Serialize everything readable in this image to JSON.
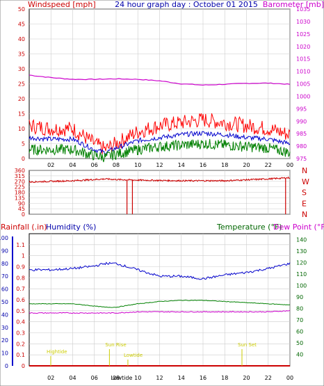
{
  "header": {
    "left_label": "Windspeed [mph]",
    "title": "24 hour graph day : October 01 2015",
    "right_label": "Barometer [mb]"
  },
  "colors": {
    "wind": "#ff0000",
    "wind_avg": "#0000cc",
    "wind_lull": "#008000",
    "barometer": "#cc00cc",
    "direction": "#cc0000",
    "rain": "#cc0000",
    "humidity": "#0000cc",
    "temperature": "#008000",
    "dewpoint": "#cc00cc",
    "tide": "#cccc00",
    "grid": "#cccccc"
  },
  "chart_data": [
    {
      "type": "line",
      "panel": "wind-barometer",
      "x_ticks": [
        "02",
        "04",
        "06",
        "08",
        "10",
        "12",
        "14",
        "16",
        "18",
        "20",
        "22",
        "00"
      ],
      "y_left": {
        "label": "Windspeed [mph]",
        "ylim": [
          0,
          50
        ],
        "ticks": [
          "0",
          "5",
          "10",
          "15",
          "20",
          "25",
          "30",
          "35",
          "40",
          "45",
          "50"
        ]
      },
      "y_right": {
        "label": "Barometer [mb]",
        "ylim": [
          975,
          1035
        ],
        "ticks": [
          "975",
          "980",
          "985",
          "990",
          "995",
          "1000",
          "1005",
          "1010",
          "1015",
          "1020",
          "1025",
          "1030",
          "1035"
        ]
      },
      "hours": [
        0,
        2,
        4,
        6,
        7,
        8,
        10,
        12,
        14,
        16,
        18,
        20,
        22,
        24
      ],
      "series": [
        {
          "key": "gust",
          "axis": "left",
          "values": [
            11,
            10,
            10,
            5,
            3,
            5,
            9,
            11,
            12,
            13,
            12,
            11,
            10,
            8
          ]
        },
        {
          "key": "average",
          "axis": "left",
          "values": [
            7,
            6.5,
            6.5,
            3,
            2,
            3.5,
            6,
            7,
            8,
            8.5,
            8,
            7,
            6.5,
            5
          ]
        },
        {
          "key": "lull",
          "axis": "left",
          "values": [
            3,
            3,
            3,
            1,
            0.5,
            1.5,
            3,
            4,
            4.5,
            5,
            4.5,
            4,
            3.5,
            2
          ]
        },
        {
          "key": "barometer",
          "axis": "right",
          "values": [
            1008.5,
            1007.5,
            1006.8,
            1006.8,
            1006.9,
            1007,
            1006.8,
            1006.2,
            1005,
            1004.5,
            1004.8,
            1005.2,
            1005.3,
            1004.8
          ]
        }
      ]
    },
    {
      "type": "line",
      "panel": "wind-direction",
      "y_left": {
        "ylim": [
          0,
          360
        ],
        "ticks": [
          "0",
          "45",
          "90",
          "135",
          "180",
          "225",
          "270",
          "315",
          "360"
        ]
      },
      "y_right": {
        "ticks": [
          "N",
          "W",
          "S",
          "E",
          "N"
        ]
      },
      "hours": [
        0,
        4,
        7,
        8,
        10,
        14,
        18,
        22,
        24
      ],
      "values": [
        265,
        275,
        290,
        285,
        280,
        275,
        275,
        290,
        300
      ],
      "dips": [
        {
          "hour": 9.0,
          "value": 0
        },
        {
          "hour": 9.5,
          "value": 0
        },
        {
          "hour": 23.6,
          "value": 0
        }
      ]
    },
    {
      "type": "line",
      "panel": "rain-humidity-temperature",
      "left_labels": {
        "rain": "Rainfall (.in)",
        "humidity": "Humidity (%)"
      },
      "right_labels": {
        "temperature": "Temperature (°F)",
        "dewpoint": "Dew Point (°F)"
      },
      "y_humidity": {
        "ylim": [
          0,
          100
        ],
        "ticks": [
          "0",
          "10",
          "20",
          "30",
          "40",
          "50",
          "60",
          "70",
          "80",
          "90",
          "100"
        ]
      },
      "y_rain": {
        "ylim": [
          0,
          1.2
        ],
        "ticks": [
          "0",
          "0.1",
          "0.2",
          "0.3",
          "0.4",
          "0.5",
          "0.6",
          "0.7",
          "0.8",
          "0.9",
          "1",
          "1.1"
        ]
      },
      "y_temp": {
        "ylim": [
          30,
          145
        ],
        "ticks": [
          "40",
          "50",
          "60",
          "70",
          "80",
          "90",
          "100",
          "110",
          "120",
          "130",
          "140"
        ]
      },
      "hours": [
        0,
        2,
        4,
        6,
        7,
        8,
        10,
        12,
        14,
        16,
        18,
        20,
        22,
        24
      ],
      "series": [
        {
          "key": "humidity",
          "axis": "humidity",
          "values": [
            75,
            75,
            76,
            78,
            80,
            80,
            75,
            70,
            70,
            68,
            71,
            73,
            76,
            80
          ]
        },
        {
          "key": "temperature",
          "axis": "temp",
          "values": [
            84,
            84,
            84,
            82,
            81,
            81,
            84,
            86,
            87,
            87,
            86,
            85,
            84,
            83
          ]
        },
        {
          "key": "dewpoint",
          "axis": "temp",
          "values": [
            76,
            76,
            76,
            76,
            76,
            76,
            77,
            77,
            77,
            77,
            77,
            77,
            77,
            78
          ]
        },
        {
          "key": "rain",
          "axis": "rain",
          "values": [
            0,
            0,
            0,
            0,
            0,
            0,
            0,
            0,
            0,
            0,
            0,
            0,
            0,
            0
          ]
        }
      ],
      "annotations": [
        {
          "text": "Hightide",
          "hour": 1.6,
          "row": "upper"
        },
        {
          "text": "Sun Rise",
          "hour": 7.0,
          "row": "mid"
        },
        {
          "text": "Lowtide",
          "hour": 8.7,
          "row": "lower"
        },
        {
          "text": "Sun Set",
          "hour": 19.2,
          "row": "mid"
        },
        {
          "text": "Lowtide",
          "hour": 8.5,
          "row": "axis"
        }
      ]
    }
  ]
}
